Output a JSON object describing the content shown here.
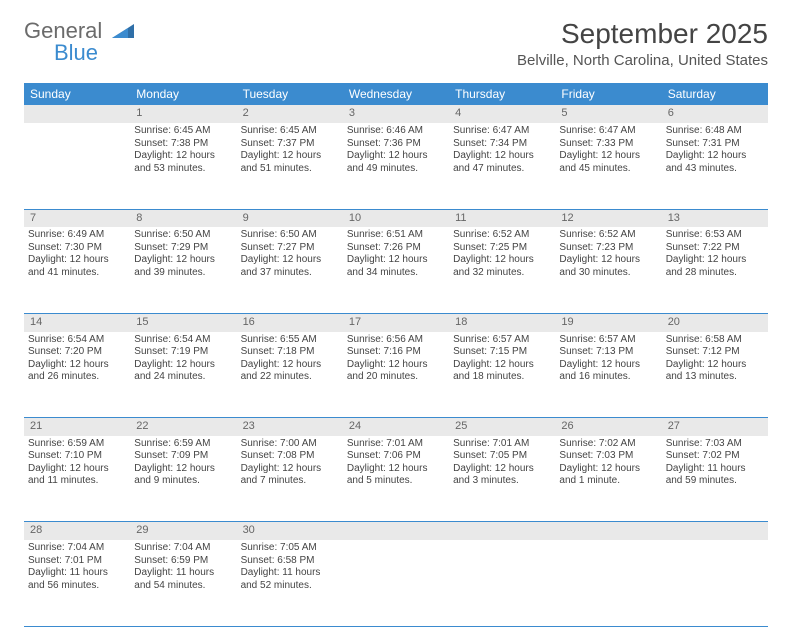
{
  "logo": {
    "text1": "General",
    "text2": "Blue"
  },
  "title": "September 2025",
  "location": "Belville, North Carolina, United States",
  "colors": {
    "header_bg": "#3b8bcf",
    "header_text": "#ffffff",
    "daynum_bg": "#e9e9e9",
    "daynum_text": "#666666",
    "body_text": "#444444",
    "rule": "#3b8bcf",
    "page_bg": "#ffffff"
  },
  "typography": {
    "title_fontsize": 28,
    "location_fontsize": 15,
    "header_fontsize": 12,
    "daynum_fontsize": 11,
    "cell_fontsize": 10
  },
  "weekdays": [
    "Sunday",
    "Monday",
    "Tuesday",
    "Wednesday",
    "Thursday",
    "Friday",
    "Saturday"
  ],
  "weeks": [
    {
      "nums": [
        "",
        "1",
        "2",
        "3",
        "4",
        "5",
        "6"
      ],
      "cells": [
        {
          "empty": true
        },
        {
          "sunrise": "Sunrise: 6:45 AM",
          "sunset": "Sunset: 7:38 PM",
          "daylight": "Daylight: 12 hours and 53 minutes."
        },
        {
          "sunrise": "Sunrise: 6:45 AM",
          "sunset": "Sunset: 7:37 PM",
          "daylight": "Daylight: 12 hours and 51 minutes."
        },
        {
          "sunrise": "Sunrise: 6:46 AM",
          "sunset": "Sunset: 7:36 PM",
          "daylight": "Daylight: 12 hours and 49 minutes."
        },
        {
          "sunrise": "Sunrise: 6:47 AM",
          "sunset": "Sunset: 7:34 PM",
          "daylight": "Daylight: 12 hours and 47 minutes."
        },
        {
          "sunrise": "Sunrise: 6:47 AM",
          "sunset": "Sunset: 7:33 PM",
          "daylight": "Daylight: 12 hours and 45 minutes."
        },
        {
          "sunrise": "Sunrise: 6:48 AM",
          "sunset": "Sunset: 7:31 PM",
          "daylight": "Daylight: 12 hours and 43 minutes."
        }
      ]
    },
    {
      "nums": [
        "7",
        "8",
        "9",
        "10",
        "11",
        "12",
        "13"
      ],
      "cells": [
        {
          "sunrise": "Sunrise: 6:49 AM",
          "sunset": "Sunset: 7:30 PM",
          "daylight": "Daylight: 12 hours and 41 minutes."
        },
        {
          "sunrise": "Sunrise: 6:50 AM",
          "sunset": "Sunset: 7:29 PM",
          "daylight": "Daylight: 12 hours and 39 minutes."
        },
        {
          "sunrise": "Sunrise: 6:50 AM",
          "sunset": "Sunset: 7:27 PM",
          "daylight": "Daylight: 12 hours and 37 minutes."
        },
        {
          "sunrise": "Sunrise: 6:51 AM",
          "sunset": "Sunset: 7:26 PM",
          "daylight": "Daylight: 12 hours and 34 minutes."
        },
        {
          "sunrise": "Sunrise: 6:52 AM",
          "sunset": "Sunset: 7:25 PM",
          "daylight": "Daylight: 12 hours and 32 minutes."
        },
        {
          "sunrise": "Sunrise: 6:52 AM",
          "sunset": "Sunset: 7:23 PM",
          "daylight": "Daylight: 12 hours and 30 minutes."
        },
        {
          "sunrise": "Sunrise: 6:53 AM",
          "sunset": "Sunset: 7:22 PM",
          "daylight": "Daylight: 12 hours and 28 minutes."
        }
      ]
    },
    {
      "nums": [
        "14",
        "15",
        "16",
        "17",
        "18",
        "19",
        "20"
      ],
      "cells": [
        {
          "sunrise": "Sunrise: 6:54 AM",
          "sunset": "Sunset: 7:20 PM",
          "daylight": "Daylight: 12 hours and 26 minutes."
        },
        {
          "sunrise": "Sunrise: 6:54 AM",
          "sunset": "Sunset: 7:19 PM",
          "daylight": "Daylight: 12 hours and 24 minutes."
        },
        {
          "sunrise": "Sunrise: 6:55 AM",
          "sunset": "Sunset: 7:18 PM",
          "daylight": "Daylight: 12 hours and 22 minutes."
        },
        {
          "sunrise": "Sunrise: 6:56 AM",
          "sunset": "Sunset: 7:16 PM",
          "daylight": "Daylight: 12 hours and 20 minutes."
        },
        {
          "sunrise": "Sunrise: 6:57 AM",
          "sunset": "Sunset: 7:15 PM",
          "daylight": "Daylight: 12 hours and 18 minutes."
        },
        {
          "sunrise": "Sunrise: 6:57 AM",
          "sunset": "Sunset: 7:13 PM",
          "daylight": "Daylight: 12 hours and 16 minutes."
        },
        {
          "sunrise": "Sunrise: 6:58 AM",
          "sunset": "Sunset: 7:12 PM",
          "daylight": "Daylight: 12 hours and 13 minutes."
        }
      ]
    },
    {
      "nums": [
        "21",
        "22",
        "23",
        "24",
        "25",
        "26",
        "27"
      ],
      "cells": [
        {
          "sunrise": "Sunrise: 6:59 AM",
          "sunset": "Sunset: 7:10 PM",
          "daylight": "Daylight: 12 hours and 11 minutes."
        },
        {
          "sunrise": "Sunrise: 6:59 AM",
          "sunset": "Sunset: 7:09 PM",
          "daylight": "Daylight: 12 hours and 9 minutes."
        },
        {
          "sunrise": "Sunrise: 7:00 AM",
          "sunset": "Sunset: 7:08 PM",
          "daylight": "Daylight: 12 hours and 7 minutes."
        },
        {
          "sunrise": "Sunrise: 7:01 AM",
          "sunset": "Sunset: 7:06 PM",
          "daylight": "Daylight: 12 hours and 5 minutes."
        },
        {
          "sunrise": "Sunrise: 7:01 AM",
          "sunset": "Sunset: 7:05 PM",
          "daylight": "Daylight: 12 hours and 3 minutes."
        },
        {
          "sunrise": "Sunrise: 7:02 AM",
          "sunset": "Sunset: 7:03 PM",
          "daylight": "Daylight: 12 hours and 1 minute."
        },
        {
          "sunrise": "Sunrise: 7:03 AM",
          "sunset": "Sunset: 7:02 PM",
          "daylight": "Daylight: 11 hours and 59 minutes."
        }
      ]
    },
    {
      "nums": [
        "28",
        "29",
        "30",
        "",
        "",
        "",
        ""
      ],
      "cells": [
        {
          "sunrise": "Sunrise: 7:04 AM",
          "sunset": "Sunset: 7:01 PM",
          "daylight": "Daylight: 11 hours and 56 minutes."
        },
        {
          "sunrise": "Sunrise: 7:04 AM",
          "sunset": "Sunset: 6:59 PM",
          "daylight": "Daylight: 11 hours and 54 minutes."
        },
        {
          "sunrise": "Sunrise: 7:05 AM",
          "sunset": "Sunset: 6:58 PM",
          "daylight": "Daylight: 11 hours and 52 minutes."
        },
        {
          "empty": true
        },
        {
          "empty": true
        },
        {
          "empty": true
        },
        {
          "empty": true
        }
      ]
    }
  ]
}
